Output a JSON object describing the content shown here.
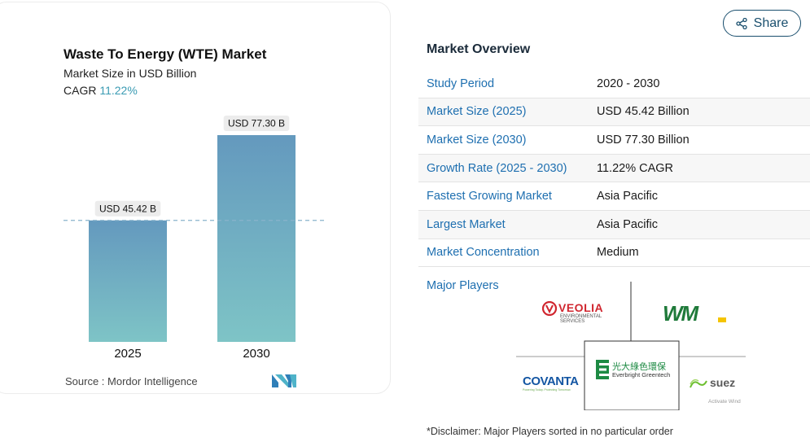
{
  "share": {
    "label": "Share",
    "icon": "share-icon"
  },
  "chart": {
    "title": "Waste To Energy (WTE) Market",
    "subtitle": "Market Size in USD Billion",
    "cagr_label": "CAGR",
    "cagr_value": "11.22%",
    "source": "Source :  Mordor Intelligence"
  },
  "chart_data": {
    "type": "bar",
    "categories": [
      "2025",
      "2030"
    ],
    "values": [
      45.42,
      77.3
    ],
    "data_labels": [
      "USD 45.42 B",
      "USD 77.30 B"
    ],
    "title": "Waste To Energy (WTE) Market",
    "ylabel": "Market Size in USD Billion",
    "xlabel": "",
    "ylim": [
      0,
      77.3
    ],
    "grid": false,
    "reference_line": 45.42,
    "bar_gradient": [
      "#6499be",
      "#7ec4c6"
    ]
  },
  "overview": {
    "title": "Market Overview",
    "rows": [
      {
        "label": "Study Period",
        "value": "2020 - 2030"
      },
      {
        "label": "Market Size (2025)",
        "value": "USD 45.42 Billion"
      },
      {
        "label": "Market Size (2030)",
        "value": "USD 77.30 Billion"
      },
      {
        "label": "Growth Rate (2025 - 2030)",
        "value": "11.22% CAGR"
      },
      {
        "label": "Fastest Growing Market",
        "value": "Asia Pacific"
      },
      {
        "label": "Largest Market",
        "value": "Asia Pacific"
      },
      {
        "label": "Market Concentration",
        "value": "Medium"
      }
    ]
  },
  "players": {
    "label": "Major Players",
    "logos": [
      {
        "name": "VEOLIA",
        "sub1": "ENVIRONMENTAL",
        "sub2": "SERVICES",
        "color": "#d0262f"
      },
      {
        "name": "WM",
        "color": "#1f7a3a"
      },
      {
        "name": "光大綠色環保",
        "sub1": "Everbright Greentech",
        "color": "#1d8a43"
      },
      {
        "name": "COVANTA",
        "sub1": "Powering Today. Protecting Tomorrow.",
        "color": "#1456a3"
      },
      {
        "name": "suez",
        "color": "#6cbf2e"
      }
    ],
    "watermark": "Activate Wind"
  },
  "disclaimer": "*Disclaimer: Major Players sorted in no particular order"
}
